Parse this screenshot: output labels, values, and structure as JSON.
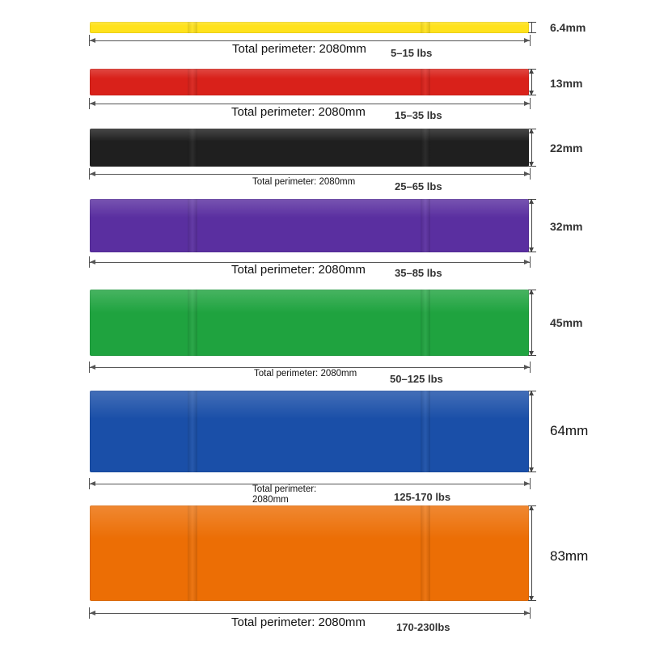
{
  "bands": [
    {
      "color_name": "yellow",
      "hex": "#ffe21c",
      "thickness": "6.4mm",
      "perimeter": "Total perimeter: 2080mm",
      "resistance": "5–15 lbs"
    },
    {
      "color_name": "red",
      "hex": "#d9211a",
      "thickness": "13mm",
      "perimeter": "Total perimeter: 2080mm",
      "resistance": "15–35 lbs"
    },
    {
      "color_name": "black",
      "hex": "#1f1f1f",
      "thickness": "22mm",
      "perimeter": "Total perimeter: 2080mm",
      "resistance": "25–65 lbs"
    },
    {
      "color_name": "purple",
      "hex": "#5a2fa0",
      "thickness": "32mm",
      "perimeter": "Total perimeter: 2080mm",
      "resistance": "35–85 lbs"
    },
    {
      "color_name": "green",
      "hex": "#1fa33f",
      "thickness": "45mm",
      "perimeter": "Total perimeter: 2080mm",
      "resistance": "50–125 lbs"
    },
    {
      "color_name": "blue",
      "hex": "#1a4fa8",
      "thickness": "64mm",
      "perimeter": "Total perimeter: 2080mm",
      "resistance": "125-170 lbs"
    },
    {
      "color_name": "orange",
      "hex": "#ec6e05",
      "thickness": "83mm",
      "perimeter": "Total perimeter: 2080mm",
      "resistance": "170-230lbs"
    }
  ]
}
